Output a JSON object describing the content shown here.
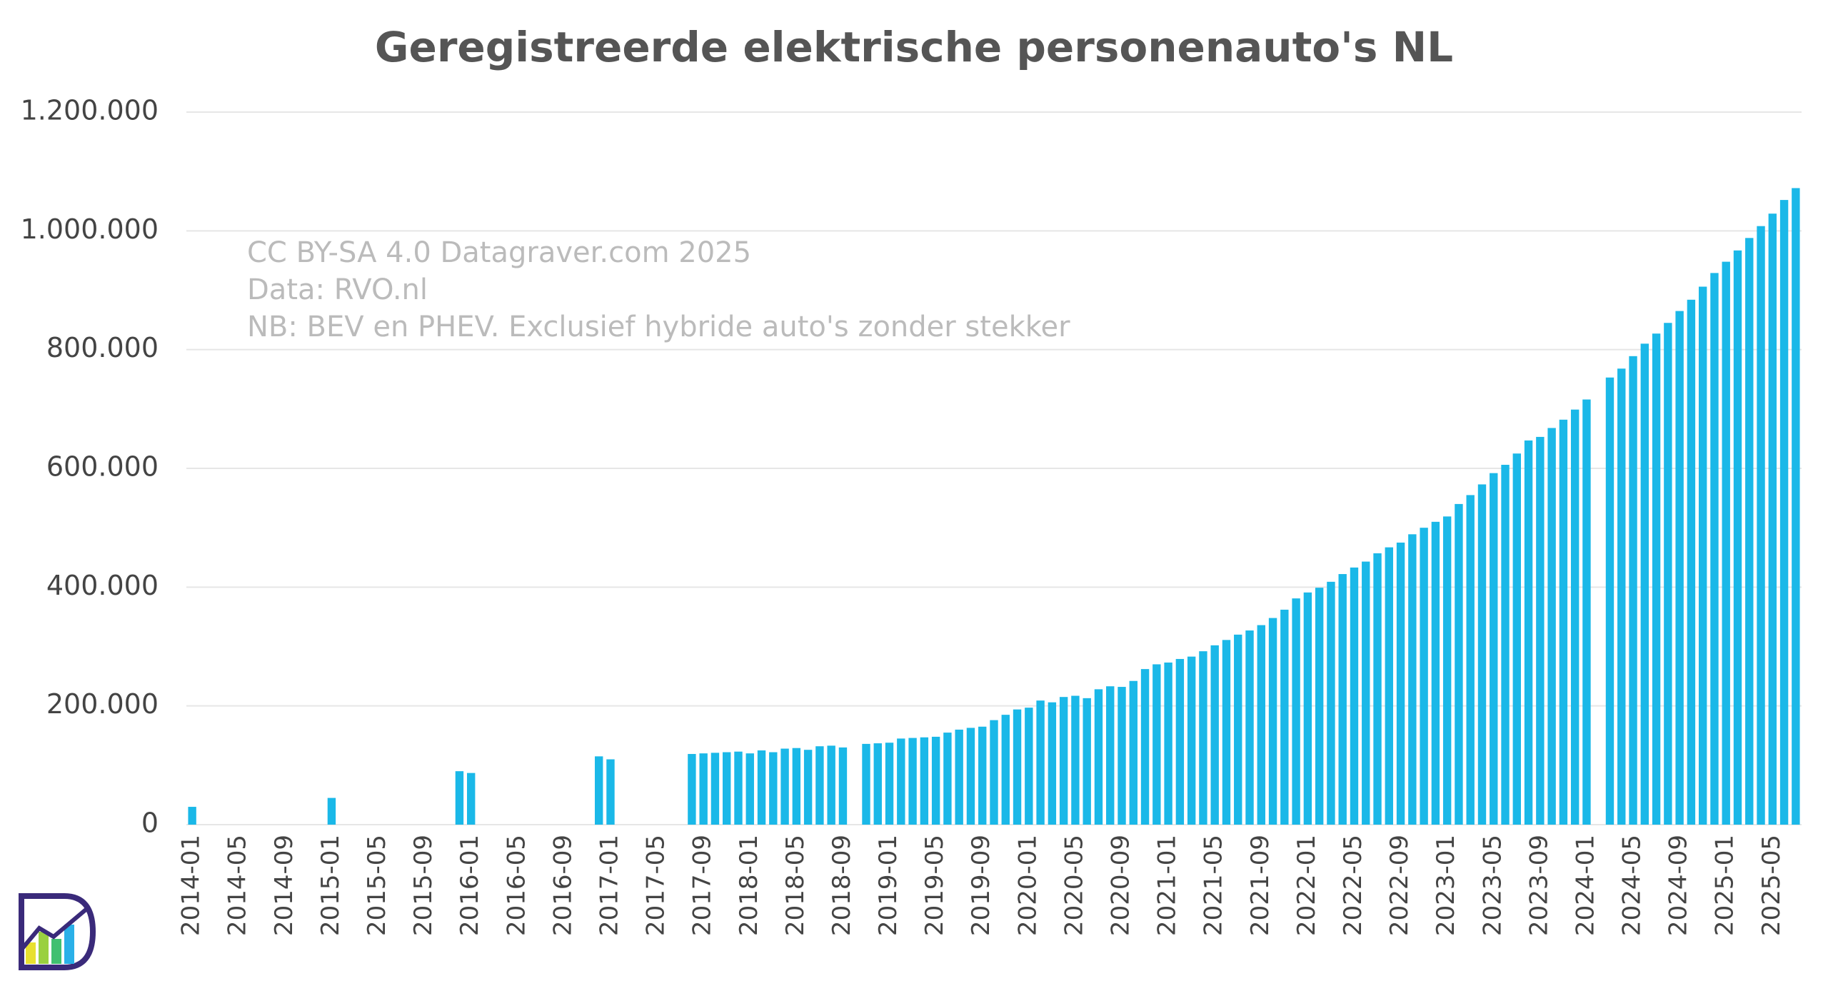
{
  "chart_data": {
    "type": "bar",
    "title": "Geregistreerde elektrische personenauto's NL",
    "annotations": [
      "CC BY-SA 4.0 Datagraver.com 2025",
      "Data: RVO.nl",
      "NB: BEV en PHEV. Exclusief hybride auto's zonder stekker"
    ],
    "color": "#1ab8e8",
    "grid": true,
    "ylim": [
      0,
      1200000
    ],
    "yticks": [
      0,
      {
        "value": 200000,
        "label": "200.000"
      },
      {
        "value": 400000,
        "label": "400.000"
      },
      {
        "value": 600000,
        "label": "600.000"
      },
      {
        "value": 800000,
        "label": "800.000"
      },
      {
        "value": 1000000,
        "label": "1.000.000"
      },
      {
        "value": 1200000,
        "label": "1.200.000"
      }
    ],
    "categories": [
      "2014-01",
      null,
      null,
      null,
      "2014-05",
      null,
      null,
      null,
      "2014-09",
      null,
      null,
      null,
      "2015-01",
      null,
      null,
      null,
      "2015-05",
      null,
      null,
      null,
      "2015-09",
      null,
      null,
      null,
      "2016-01",
      null,
      null,
      null,
      "2016-05",
      null,
      null,
      null,
      "2016-09",
      null,
      null,
      null,
      "2017-01",
      null,
      null,
      null,
      "2017-05",
      null,
      null,
      null,
      "2017-09",
      null,
      null,
      null,
      "2018-01",
      null,
      null,
      null,
      "2018-05",
      null,
      null,
      null,
      "2018-09",
      null,
      null,
      null,
      "2019-01",
      null,
      null,
      null,
      "2019-05",
      null,
      null,
      null,
      "2019-09",
      null,
      null,
      null,
      "2020-01",
      null,
      null,
      null,
      "2020-05",
      null,
      null,
      null,
      "2020-09",
      null,
      null,
      null,
      "2021-01",
      null,
      null,
      null,
      "2021-05",
      null,
      null,
      null,
      "2021-09",
      null,
      null,
      null,
      "2022-01",
      null,
      null,
      null,
      "2022-05",
      null,
      null,
      null,
      "2022-09",
      null,
      null,
      null,
      "2023-01",
      null,
      null,
      null,
      "2023-05",
      null,
      null,
      null,
      "2023-09",
      null,
      null,
      null,
      "2024-01",
      null,
      null,
      null,
      "2024-05",
      null,
      null,
      null,
      "2024-09",
      null,
      null,
      null,
      "2025-01",
      null,
      null,
      null,
      "2025-05",
      null,
      null
    ],
    "values": [
      30000,
      null,
      null,
      null,
      null,
      null,
      null,
      null,
      null,
      null,
      null,
      null,
      45000,
      null,
      null,
      null,
      null,
      null,
      null,
      null,
      null,
      null,
      null,
      90000,
      87000,
      null,
      null,
      null,
      null,
      null,
      null,
      null,
      null,
      null,
      null,
      115000,
      110000,
      null,
      null,
      null,
      null,
      null,
      null,
      119000,
      120000,
      121000,
      122000,
      123000,
      120000,
      125000,
      122000,
      128000,
      129000,
      126000,
      132000,
      133000,
      130000,
      null,
      136000,
      137000,
      138000,
      145000,
      146000,
      147000,
      148000,
      155000,
      160000,
      163000,
      165000,
      176000,
      185000,
      194000,
      197000,
      209000,
      206000,
      215000,
      217000,
      213000,
      228000,
      233000,
      232000,
      242000,
      262000,
      270000,
      273000,
      279000,
      283000,
      292000,
      302000,
      311000,
      320000,
      327000,
      336000,
      348000,
      362000,
      381000,
      391000,
      399000,
      409000,
      422000,
      433000,
      443000,
      457000,
      467000,
      475000,
      489000,
      500000,
      510000,
      519000,
      540000,
      555000,
      573000,
      592000,
      606000,
      625000,
      647000,
      653000,
      668000,
      682000,
      699000,
      716000,
      null,
      753000,
      768000,
      789000,
      810000,
      827000,
      845000,
      865000,
      884000,
      906000,
      929000,
      948000,
      967000,
      988000,
      1008000,
      1029000,
      1052000,
      1072000
    ]
  }
}
